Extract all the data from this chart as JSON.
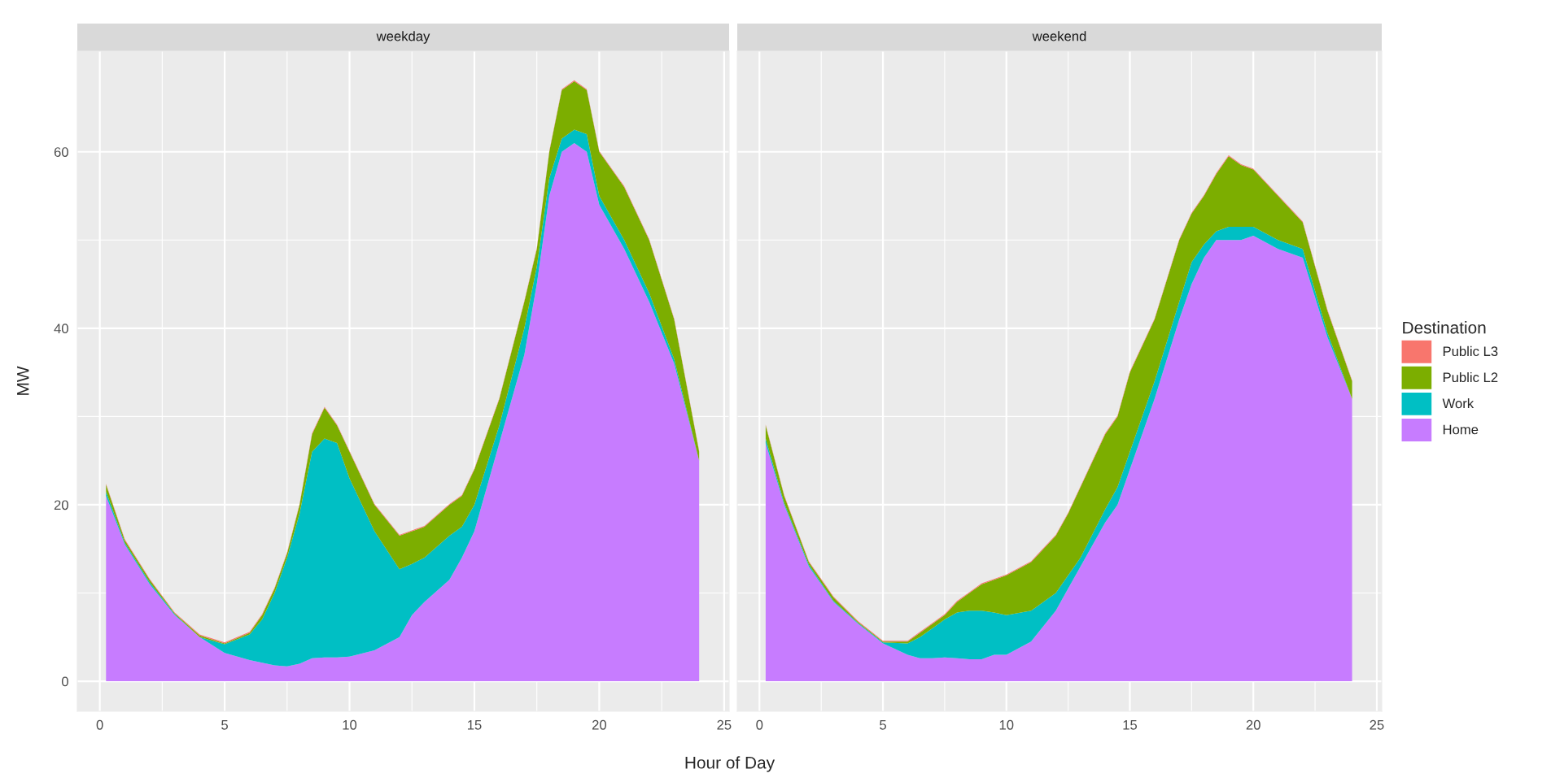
{
  "chart_data": [
    {
      "type": "area",
      "stacked": true,
      "title": "weekday",
      "xlabel": "Hour of Day",
      "ylabel": "MW",
      "grid": true,
      "legend": "right",
      "legend_title": "Destination",
      "x": [
        0.25,
        1,
        2,
        3,
        4,
        5,
        6,
        6.5,
        7,
        7.5,
        8,
        8.5,
        9,
        9.5,
        10,
        11,
        12,
        12.5,
        13,
        14,
        14.5,
        15,
        16,
        17,
        17.5,
        18,
        18.5,
        19,
        19.5,
        20,
        21,
        22,
        23,
        24
      ],
      "xlim": [
        -0.9,
        25.2
      ],
      "xticks": [
        0,
        5,
        10,
        15,
        20,
        25
      ],
      "ylim": [
        -3.4,
        71.4
      ],
      "yticks": [
        0,
        20,
        40,
        60
      ],
      "series": [
        {
          "name": "Home",
          "color": "#c77cff",
          "values": [
            21,
            15.5,
            11,
            7.5,
            5,
            3.2,
            2.4,
            2.1,
            1.8,
            1.7,
            2.0,
            2.6,
            2.7,
            2.7,
            2.8,
            3.5,
            5,
            7.5,
            9,
            11.5,
            14,
            17,
            27,
            37,
            45,
            55,
            60,
            61,
            60,
            54,
            49,
            43,
            36,
            25
          ]
        },
        {
          "name": "Work",
          "color": "#00bfc4",
          "values": [
            0.5,
            0.2,
            0.2,
            0.1,
            0,
            1.0,
            2.9,
            4.9,
            8.2,
            12.3,
            17,
            23.4,
            24.8,
            24.3,
            20.2,
            13.5,
            7.7,
            5.8,
            5,
            5,
            3.5,
            3,
            2,
            3,
            2,
            2,
            1.5,
            1.5,
            2,
            1,
            1,
            1,
            0.5,
            0
          ]
        },
        {
          "name": "Public L2",
          "color": "#7cae00",
          "values": [
            0.8,
            0.3,
            0.3,
            0.1,
            0.2,
            0.1,
            0.2,
            0.5,
            0.5,
            0.5,
            1,
            2,
            3.5,
            2,
            3,
            3,
            3.8,
            3.7,
            3.5,
            3.5,
            3.5,
            4,
            3,
            3,
            2,
            3,
            5.5,
            5.5,
            5,
            5,
            6,
            6,
            4.5,
            1
          ]
        },
        {
          "name": "Public L3",
          "color": "#f8766d",
          "values": [
            0.1,
            0.1,
            0.1,
            0.1,
            0.1,
            0.1,
            0.1,
            0.1,
            0.1,
            0.1,
            0.1,
            0.1,
            0.1,
            0.1,
            0.1,
            0.1,
            0.1,
            0.1,
            0.1,
            0.1,
            0.1,
            0.1,
            0.1,
            0.1,
            0.1,
            0.1,
            0.1,
            0.1,
            0.1,
            0.1,
            0.1,
            0.1,
            0.1,
            0.1
          ]
        }
      ]
    },
    {
      "type": "area",
      "stacked": true,
      "title": "weekend",
      "grid": true,
      "tick_labels": "x",
      "x": [
        0.25,
        1,
        2,
        3,
        4,
        5,
        6,
        6.5,
        7,
        7.5,
        8,
        8.5,
        9,
        9.5,
        10,
        11,
        12,
        12.5,
        13,
        14,
        14.5,
        15,
        16,
        17,
        17.5,
        18,
        18.5,
        19,
        19.5,
        20,
        21,
        22,
        23,
        24
      ],
      "xlim": [
        -0.9,
        25.2
      ],
      "xticks": [
        0,
        5,
        10,
        15,
        20,
        25
      ],
      "ylim": [
        -3.4,
        71.4
      ],
      "yticks": [
        0,
        20,
        40,
        60
      ],
      "series": [
        {
          "color": "#c77cff",
          "values": [
            27,
            20,
            13,
            9,
            6.5,
            4.3,
            3,
            2.6,
            2.6,
            2.7,
            2.6,
            2.5,
            2.5,
            3,
            3,
            4.5,
            8,
            10.5,
            13,
            18,
            20,
            24,
            32,
            41,
            45,
            48,
            50,
            50,
            50,
            50.5,
            49,
            48,
            39,
            32
          ]
        },
        {
          "color": "#00bfc4",
          "values": [
            0.5,
            0.2,
            0.2,
            0.1,
            0.1,
            0.1,
            1.3,
            2.4,
            3.4,
            4.3,
            5.2,
            5.5,
            5.5,
            4.8,
            4.5,
            3.5,
            2,
            1.5,
            1,
            1.5,
            2,
            2,
            2,
            2,
            2.5,
            1.5,
            1,
            1.5,
            1.5,
            1,
            1,
            1,
            0.5,
            0
          ]
        },
        {
          "color": "#7cae00",
          "values": [
            1.5,
            0.8,
            0.3,
            0.4,
            0.1,
            0.1,
            0.2,
            0.5,
            0.5,
            0.5,
            1.2,
            2,
            3,
            3.7,
            4.5,
            5.5,
            6.5,
            7,
            8,
            8.5,
            8,
            9,
            7,
            7,
            5.5,
            5.5,
            6.5,
            8,
            7,
            6.5,
            5,
            3,
            2.5,
            2
          ]
        },
        {
          "color": "#f8766d",
          "values": [
            0.1,
            0.1,
            0.1,
            0.1,
            0.1,
            0.1,
            0.1,
            0.1,
            0.1,
            0.1,
            0.1,
            0.1,
            0.1,
            0.1,
            0.1,
            0.1,
            0.1,
            0.1,
            0.1,
            0.1,
            0.1,
            0.1,
            0.1,
            0.1,
            0.1,
            0.1,
            0.1,
            0.1,
            0.1,
            0.1,
            0.1,
            0.1,
            0.1,
            0.1
          ]
        }
      ]
    }
  ]
}
